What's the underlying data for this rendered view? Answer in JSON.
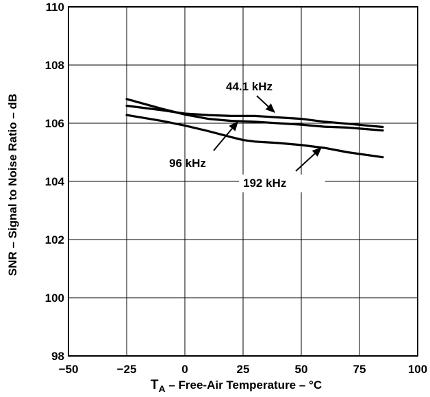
{
  "chart_data": {
    "type": "line",
    "xlabel": {
      "main": "T",
      "sub": "A",
      "rest": " – Free-Air Temperature – °C"
    },
    "ylabel": "SNR – Signal to Noise Ratio – dB",
    "xlim": [
      -50,
      100
    ],
    "ylim": [
      98,
      110
    ],
    "x_ticks": [
      "−50",
      "−25",
      "0",
      "25",
      "50",
      "75",
      "100"
    ],
    "x_tick_values": [
      -50,
      -25,
      0,
      25,
      50,
      75,
      100
    ],
    "y_ticks": [
      "98",
      "100",
      "102",
      "104",
      "106",
      "108",
      "110"
    ],
    "y_tick_values": [
      98,
      100,
      102,
      104,
      106,
      108,
      110
    ],
    "grid": true,
    "series": [
      {
        "name": "44.1 kHz",
        "x": [
          -25,
          -10,
          0,
          10,
          20,
          30,
          40,
          50,
          60,
          70,
          85
        ],
        "values": [
          106.6,
          106.45,
          106.33,
          106.28,
          106.25,
          106.25,
          106.2,
          106.15,
          106.05,
          105.98,
          105.87
        ]
      },
      {
        "name": "96 kHz",
        "x": [
          -25,
          -10,
          0,
          10,
          20,
          30,
          40,
          50,
          60,
          70,
          85
        ],
        "values": [
          106.83,
          106.5,
          106.3,
          106.15,
          106.08,
          106.05,
          106.0,
          105.95,
          105.88,
          105.85,
          105.75
        ]
      },
      {
        "name": "192 kHz",
        "x": [
          -25,
          -10,
          0,
          10,
          20,
          25,
          30,
          40,
          50,
          60,
          70,
          85
        ],
        "values": [
          106.28,
          106.08,
          105.92,
          105.73,
          105.52,
          105.42,
          105.37,
          105.32,
          105.25,
          105.15,
          105.0,
          104.83
        ]
      }
    ],
    "annotations": [
      "44.1 kHz",
      "96 kHz",
      "192 kHz"
    ]
  }
}
